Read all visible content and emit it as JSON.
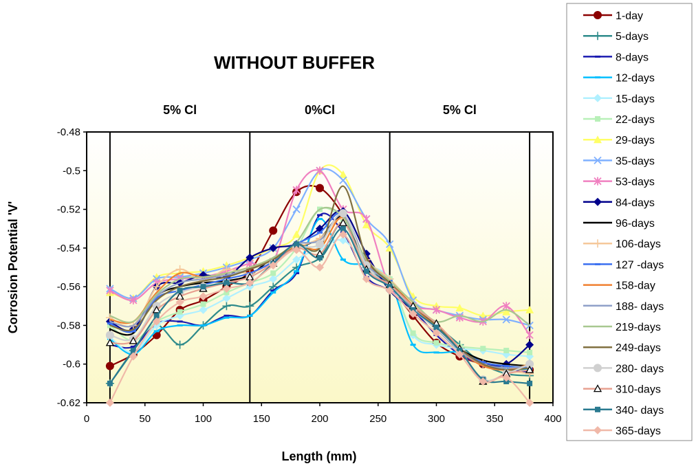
{
  "chart_data": {
    "type": "line",
    "title": "WITHOUT BUFFER",
    "xlabel": "Length (mm)",
    "ylabel": "Corrosion Potential 'V'",
    "xlim": [
      0,
      400
    ],
    "ylim": [
      -0.62,
      -0.48
    ],
    "xticks": [
      "0",
      "50",
      "100",
      "150",
      "200",
      "250",
      "300",
      "350",
      "400"
    ],
    "yticks": [
      "-0.48",
      "-0.5",
      "-0.52",
      "-0.54",
      "-0.56",
      "-0.58",
      "-0.6",
      "-0.62"
    ],
    "zones": [
      {
        "label": "5% Cl",
        "x_center": 80
      },
      {
        "label": "0%Cl",
        "x_center": 200
      },
      {
        "label": "5% Cl",
        "x_center": 320
      }
    ],
    "zone_boundaries": [
      20,
      140,
      260,
      380
    ],
    "legend_position": "right",
    "x": [
      20,
      40,
      60,
      80,
      100,
      120,
      140,
      160,
      180,
      200,
      220,
      240,
      260,
      280,
      300,
      320,
      340,
      360,
      380
    ],
    "series": [
      {
        "name": "1-day",
        "color": "#8B0000",
        "marker": "circle",
        "values": [
          -0.601,
          -0.595,
          -0.585,
          -0.572,
          -0.567,
          -0.56,
          -0.552,
          -0.531,
          -0.511,
          -0.509,
          -0.523,
          -0.547,
          -0.56,
          -0.575,
          -0.589,
          -0.596,
          -0.6,
          -0.602,
          -0.603
        ]
      },
      {
        "name": "5-days",
        "color": "#2E8B8B",
        "marker": "plus",
        "values": [
          -0.61,
          -0.593,
          -0.58,
          -0.59,
          -0.58,
          -0.57,
          -0.57,
          -0.56,
          -0.55,
          -0.545,
          -0.527,
          -0.55,
          -0.558,
          -0.57,
          -0.58,
          -0.59,
          -0.6,
          -0.605,
          -0.606
        ]
      },
      {
        "name": "8-days",
        "color": "#1A1AB0",
        "marker": "dash",
        "values": [
          -0.59,
          -0.591,
          -0.579,
          -0.578,
          -0.58,
          -0.575,
          -0.575,
          -0.562,
          -0.553,
          -0.523,
          -0.532,
          -0.555,
          -0.562,
          -0.572,
          -0.585,
          -0.595,
          -0.6,
          -0.603,
          -0.604
        ]
      },
      {
        "name": "12-days",
        "color": "#00BFFF",
        "marker": "dash",
        "values": [
          -0.587,
          -0.595,
          -0.583,
          -0.58,
          -0.58,
          -0.576,
          -0.575,
          -0.563,
          -0.552,
          -0.525,
          -0.546,
          -0.549,
          -0.557,
          -0.59,
          -0.594,
          -0.594,
          -0.6,
          -0.602,
          -0.603
        ]
      },
      {
        "name": "15-days",
        "color": "#B0F0FF",
        "marker": "diamond",
        "values": [
          -0.586,
          -0.594,
          -0.58,
          -0.575,
          -0.572,
          -0.566,
          -0.56,
          -0.556,
          -0.546,
          -0.54,
          -0.536,
          -0.548,
          -0.556,
          -0.585,
          -0.59,
          -0.592,
          -0.593,
          -0.595,
          -0.596
        ]
      },
      {
        "name": "22-days",
        "color": "#B8F0B8",
        "marker": "square",
        "values": [
          -0.58,
          -0.588,
          -0.578,
          -0.573,
          -0.569,
          -0.563,
          -0.558,
          -0.553,
          -0.54,
          -0.52,
          -0.526,
          -0.549,
          -0.556,
          -0.584,
          -0.589,
          -0.591,
          -0.592,
          -0.593,
          -0.594
        ]
      },
      {
        "name": "29-days",
        "color": "#FFFF66",
        "marker": "triangle",
        "values": [
          -0.563,
          -0.566,
          -0.555,
          -0.553,
          -0.552,
          -0.549,
          -0.545,
          -0.54,
          -0.533,
          -0.5,
          -0.502,
          -0.528,
          -0.54,
          -0.565,
          -0.57,
          -0.571,
          -0.575,
          -0.573,
          -0.572
        ]
      },
      {
        "name": "35-days",
        "color": "#7FB0FF",
        "marker": "x",
        "values": [
          -0.561,
          -0.566,
          -0.556,
          -0.555,
          -0.553,
          -0.55,
          -0.546,
          -0.54,
          -0.52,
          -0.5,
          -0.505,
          -0.525,
          -0.538,
          -0.567,
          -0.572,
          -0.575,
          -0.577,
          -0.577,
          -0.58
        ]
      },
      {
        "name": "53-days",
        "color": "#F080C0",
        "marker": "star",
        "values": [
          -0.562,
          -0.567,
          -0.558,
          -0.556,
          -0.555,
          -0.552,
          -0.548,
          -0.547,
          -0.51,
          -0.5,
          -0.52,
          -0.525,
          -0.56,
          -0.57,
          -0.572,
          -0.576,
          -0.578,
          -0.57,
          -0.585
        ]
      },
      {
        "name": "84-days",
        "color": "#00008B",
        "marker": "diamond",
        "values": [
          -0.578,
          -0.582,
          -0.56,
          -0.558,
          -0.554,
          -0.555,
          -0.545,
          -0.54,
          -0.538,
          -0.53,
          -0.521,
          -0.543,
          -0.562,
          -0.572,
          -0.582,
          -0.593,
          -0.6,
          -0.6,
          -0.59
        ]
      },
      {
        "name": "96-days",
        "color": "#000000",
        "marker": "none",
        "values": [
          -0.582,
          -0.584,
          -0.565,
          -0.56,
          -0.558,
          -0.557,
          -0.554,
          -0.545,
          -0.54,
          -0.535,
          -0.524,
          -0.548,
          -0.558,
          -0.57,
          -0.58,
          -0.592,
          -0.598,
          -0.6,
          -0.601
        ]
      },
      {
        "name": "106-days",
        "color": "#F5C89A",
        "marker": "plus",
        "values": [
          -0.576,
          -0.58,
          -0.56,
          -0.551,
          -0.557,
          -0.551,
          -0.553,
          -0.547,
          -0.54,
          -0.535,
          -0.525,
          -0.546,
          -0.556,
          -0.569,
          -0.58,
          -0.592,
          -0.6,
          -0.603,
          -0.605
        ]
      },
      {
        "name": "127 -days",
        "color": "#3A6FF0",
        "marker": "dash",
        "values": [
          -0.579,
          -0.583,
          -0.566,
          -0.562,
          -0.559,
          -0.556,
          -0.553,
          -0.547,
          -0.538,
          -0.532,
          -0.522,
          -0.547,
          -0.557,
          -0.571,
          -0.581,
          -0.593,
          -0.599,
          -0.601,
          -0.602
        ]
      },
      {
        "name": "158-day",
        "color": "#F08030",
        "marker": "none",
        "values": [
          -0.577,
          -0.578,
          -0.563,
          -0.553,
          -0.555,
          -0.553,
          -0.55,
          -0.546,
          -0.539,
          -0.54,
          -0.524,
          -0.547,
          -0.557,
          -0.57,
          -0.581,
          -0.593,
          -0.601,
          -0.603,
          -0.6
        ]
      },
      {
        "name": "188- days",
        "color": "#8FA0C8",
        "marker": "none",
        "values": [
          -0.578,
          -0.58,
          -0.565,
          -0.558,
          -0.556,
          -0.554,
          -0.551,
          -0.546,
          -0.538,
          -0.536,
          -0.523,
          -0.548,
          -0.558,
          -0.571,
          -0.582,
          -0.593,
          -0.6,
          -0.602,
          -0.601
        ]
      },
      {
        "name": "219-days",
        "color": "#A8C890",
        "marker": "none",
        "values": [
          -0.575,
          -0.578,
          -0.564,
          -0.556,
          -0.555,
          -0.553,
          -0.55,
          -0.545,
          -0.537,
          -0.52,
          -0.524,
          -0.546,
          -0.557,
          -0.568,
          -0.578,
          -0.575,
          -0.578,
          -0.572,
          -0.58
        ]
      },
      {
        "name": "249-days",
        "color": "#807040",
        "marker": "none",
        "values": [
          -0.58,
          -0.582,
          -0.567,
          -0.56,
          -0.557,
          -0.555,
          -0.551,
          -0.546,
          -0.538,
          -0.54,
          -0.508,
          -0.545,
          -0.558,
          -0.57,
          -0.58,
          -0.592,
          -0.6,
          -0.603,
          -0.602
        ]
      },
      {
        "name": "280- days",
        "color": "#D0D0D0",
        "marker": "circle",
        "values": [
          -0.585,
          -0.587,
          -0.57,
          -0.563,
          -0.56,
          -0.558,
          -0.555,
          -0.548,
          -0.54,
          -0.538,
          -0.522,
          -0.549,
          -0.56,
          -0.572,
          -0.582,
          -0.593,
          -0.608,
          -0.605,
          -0.6
        ]
      },
      {
        "name": "310-days",
        "color": "#E8A090",
        "marker": "triangle-open",
        "values": [
          -0.589,
          -0.588,
          -0.572,
          -0.565,
          -0.561,
          -0.558,
          -0.555,
          -0.548,
          -0.54,
          -0.543,
          -0.527,
          -0.551,
          -0.559,
          -0.57,
          -0.579,
          -0.592,
          -0.609,
          -0.605,
          -0.603
        ]
      },
      {
        "name": "340-  days",
        "color": "#2A7A90",
        "marker": "square",
        "values": [
          -0.61,
          -0.593,
          -0.575,
          -0.562,
          -0.56,
          -0.558,
          -0.558,
          -0.548,
          -0.538,
          -0.545,
          -0.53,
          -0.552,
          -0.56,
          -0.572,
          -0.581,
          -0.593,
          -0.608,
          -0.609,
          -0.61
        ]
      },
      {
        "name": "365-days",
        "color": "#F0B8A8",
        "marker": "diamond",
        "values": [
          -0.62,
          -0.596,
          -0.578,
          -0.568,
          -0.565,
          -0.561,
          -0.558,
          -0.549,
          -0.541,
          -0.55,
          -0.533,
          -0.556,
          -0.562,
          -0.574,
          -0.584,
          -0.595,
          -0.609,
          -0.607,
          -0.62
        ]
      }
    ]
  }
}
